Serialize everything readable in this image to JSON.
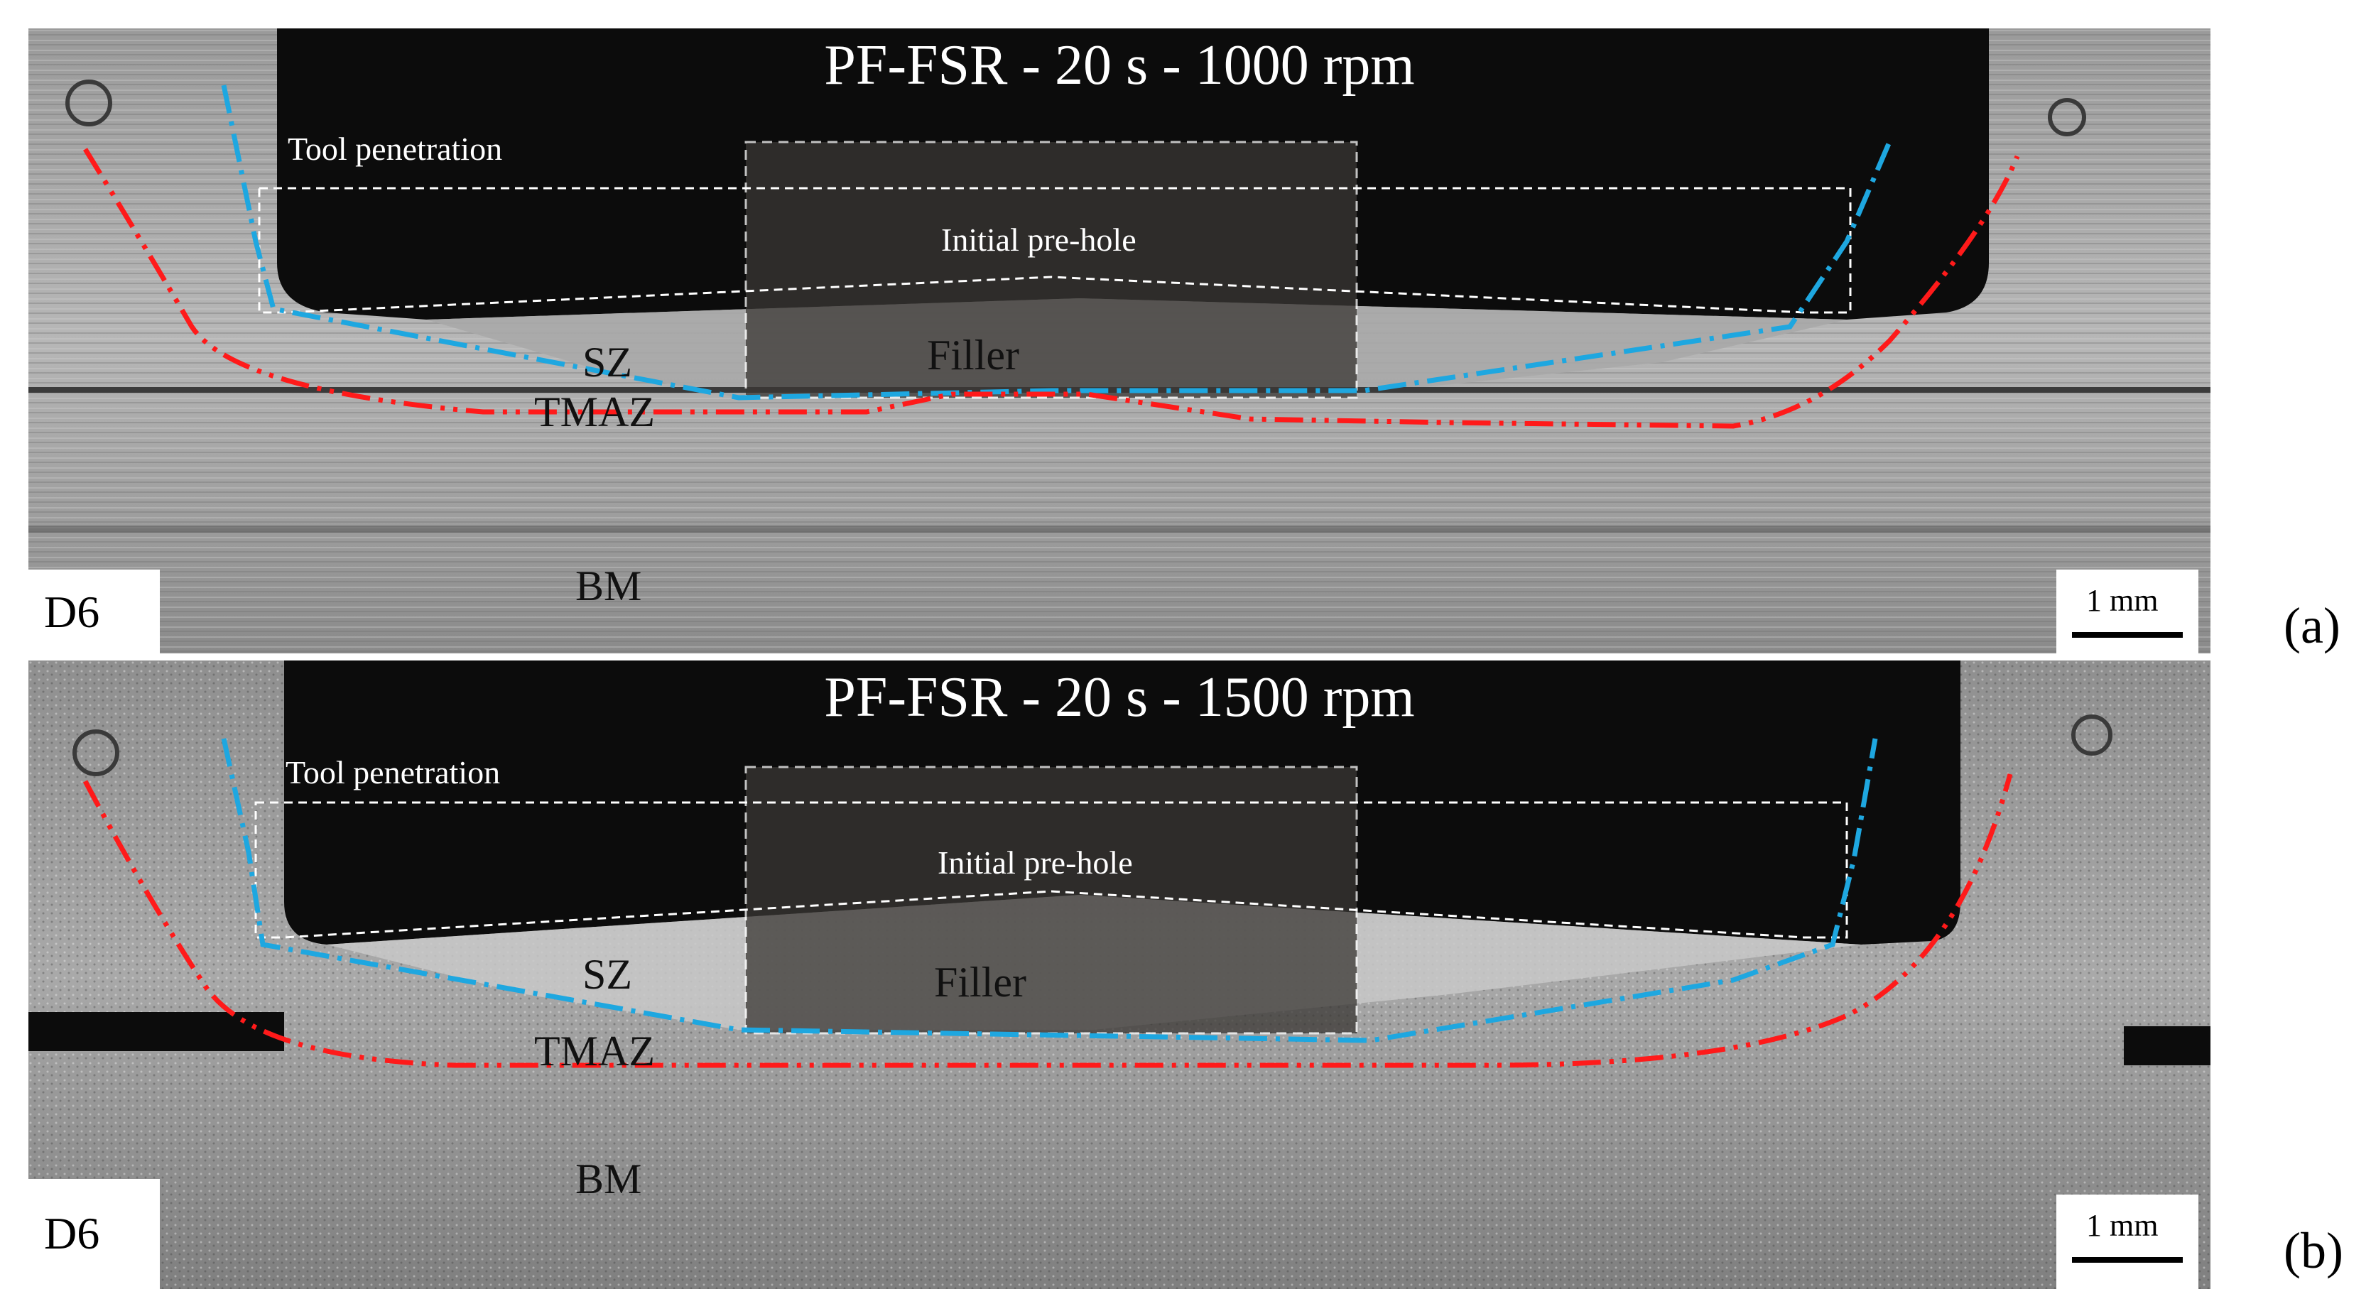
{
  "panels": [
    {
      "title": "PF-FSR - 20 s - 1000 rpm",
      "tool_penetration": "Tool penetration",
      "pre_hole": "Initial pre-hole",
      "filler": "Filler",
      "sz": "SZ",
      "tmaz": "TMAZ",
      "bm": "BM",
      "specimen": "D6",
      "scale": "1 mm",
      "label": "(a)"
    },
    {
      "title": "PF-FSR - 20 s - 1500 rpm",
      "tool_penetration": "Tool penetration",
      "pre_hole": "Initial pre-hole",
      "filler": "Filler",
      "sz": "SZ",
      "tmaz": "TMAZ",
      "bm": "BM",
      "specimen": "D6",
      "scale": "1 mm",
      "label": "(b)"
    }
  ],
  "colors": {
    "sz_boundary": "#1ea7e0",
    "tmaz_boundary": "#ff1a1a",
    "tool_outline": "#ffffff",
    "background": "#0c0c0c"
  }
}
